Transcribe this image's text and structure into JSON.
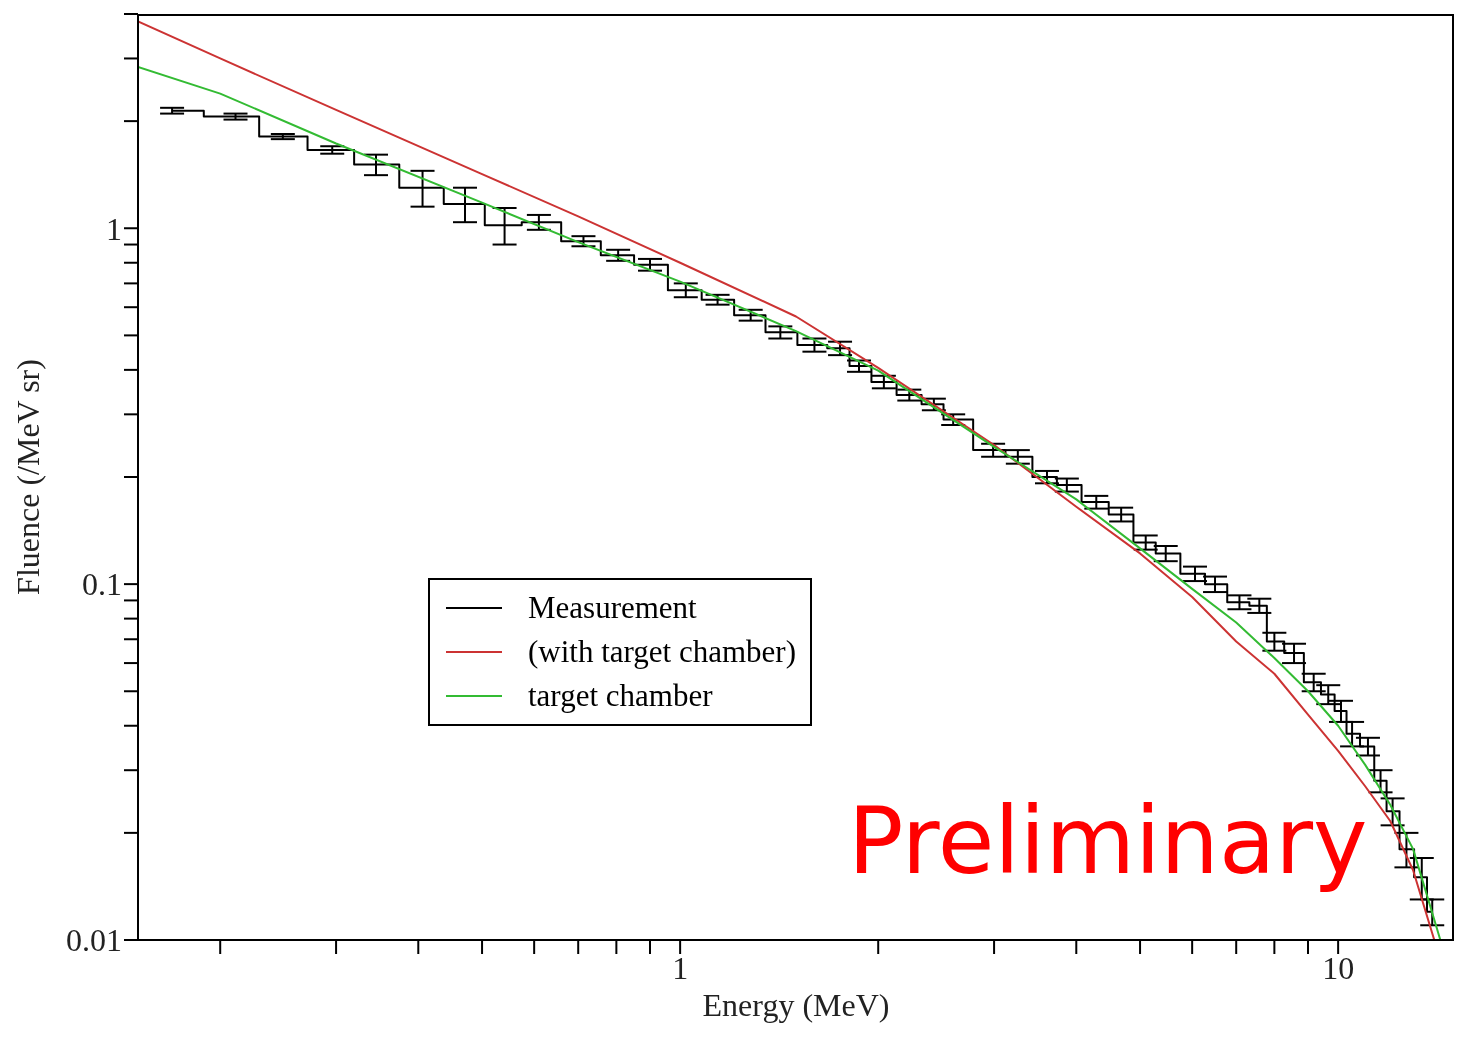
{
  "chart_data": {
    "type": "line",
    "xlabel": "Energy (MeV)",
    "ylabel": "Fluence (/MeV sr)",
    "log": "xy",
    "xlim": [
      0.15,
      15
    ],
    "ylim": [
      0.01,
      4
    ],
    "xticks": [
      {
        "value": 0.2,
        "label": null
      },
      {
        "value": 0.3,
        "label": null
      },
      {
        "value": 0.4,
        "label": null
      },
      {
        "value": 0.5,
        "label": null
      },
      {
        "value": 0.6,
        "label": null
      },
      {
        "value": 0.7,
        "label": null
      },
      {
        "value": 0.8,
        "label": null
      },
      {
        "value": 0.9,
        "label": null
      },
      1,
      {
        "value": 2,
        "label": null
      },
      {
        "value": 3,
        "label": null
      },
      {
        "value": 4,
        "label": null
      },
      {
        "value": 5,
        "label": null
      },
      {
        "value": 6,
        "label": null
      },
      {
        "value": 7,
        "label": null
      },
      {
        "value": 8,
        "label": null
      },
      {
        "value": 9,
        "label": null
      },
      10
    ],
    "yticks": [
      0.01,
      {
        "value": 0.02,
        "label": null
      },
      {
        "value": 0.03,
        "label": null
      },
      {
        "value": 0.04,
        "label": null
      },
      {
        "value": 0.05,
        "label": null
      },
      {
        "value": 0.06,
        "label": null
      },
      {
        "value": 0.07,
        "label": null
      },
      {
        "value": 0.08,
        "label": null
      },
      {
        "value": 0.09,
        "label": null
      },
      0.1,
      {
        "value": 0.2,
        "label": null
      },
      {
        "value": 0.3,
        "label": null
      },
      {
        "value": 0.4,
        "label": null
      },
      {
        "value": 0.5,
        "label": null
      },
      {
        "value": 0.6,
        "label": null
      },
      {
        "value": 0.7,
        "label": null
      },
      {
        "value": 0.8,
        "label": null
      },
      {
        "value": 0.9,
        "label": null
      },
      1,
      {
        "value": 2,
        "label": null
      },
      {
        "value": 3,
        "label": null
      },
      {
        "value": 4,
        "label": null
      }
    ],
    "legend": "center",
    "marker": "none",
    "line_style": "solid",
    "annotations": [
      "Preliminary"
    ],
    "series": [
      {
        "name": "Measurement",
        "type": "step",
        "color": "#000000",
        "x": [
          0.169,
          0.211,
          0.249,
          0.296,
          0.345,
          0.406,
          0.471,
          0.541,
          0.61,
          0.713,
          0.805,
          0.9,
          1.02,
          1.14,
          1.28,
          1.42,
          1.6,
          1.75,
          1.87,
          2.04,
          2.23,
          2.43,
          2.6,
          2.99,
          3.26,
          3.61,
          3.87,
          4.29,
          4.68,
          5.1,
          5.47,
          6.06,
          6.5,
          7.08,
          7.59,
          8.0,
          8.57,
          9.18,
          9.66,
          10.1,
          10.5,
          11.1,
          11.6,
          12.1,
          12.7,
          13.4,
          13.9
        ],
        "values": [
          2.14,
          2.06,
          1.81,
          1.66,
          1.51,
          1.3,
          1.17,
          1.02,
          1.04,
          0.92,
          0.84,
          0.79,
          0.67,
          0.63,
          0.57,
          0.51,
          0.47,
          0.46,
          0.41,
          0.37,
          0.34,
          0.32,
          0.29,
          0.238,
          0.228,
          0.2,
          0.19,
          0.17,
          0.157,
          0.131,
          0.122,
          0.107,
          0.1,
          0.089,
          0.087,
          0.069,
          0.064,
          0.053,
          0.049,
          0.044,
          0.038,
          0.035,
          0.028,
          0.023,
          0.018,
          0.015,
          0.012
        ],
        "errors": [
          0.04,
          0.04,
          0.03,
          0.04,
          0.1,
          0.15,
          0.13,
          0.12,
          0.05,
          0.03,
          0.03,
          0.03,
          0.03,
          0.02,
          0.02,
          0.02,
          0.02,
          0.02,
          0.015,
          0.015,
          0.012,
          0.012,
          0.01,
          0.01,
          0.01,
          0.008,
          0.008,
          0.007,
          0.007,
          0.006,
          0.006,
          0.005,
          0.005,
          0.004,
          0.004,
          0.004,
          0.004,
          0.003,
          0.003,
          0.003,
          0.003,
          0.002,
          0.002,
          0.002,
          0.002,
          0.002,
          0.001
        ]
      },
      {
        "name": "(with target chamber)",
        "color": "#cc3333",
        "x": [
          0.15,
          0.2,
          0.3,
          0.5,
          0.7,
          1,
          1.5,
          2,
          3,
          4,
          5,
          6,
          7,
          8,
          9,
          10,
          11,
          12,
          13,
          14
        ],
        "values": [
          3.81,
          3.0,
          2.15,
          1.42,
          1.08,
          0.8,
          0.565,
          0.405,
          0.246,
          0.165,
          0.122,
          0.092,
          0.069,
          0.056,
          0.043,
          0.034,
          0.027,
          0.0216,
          0.0157,
          0.01
        ]
      },
      {
        "name": "target chamber",
        "color": "#33bb33",
        "x": [
          0.15,
          0.2,
          0.3,
          0.5,
          0.7,
          1,
          1.5,
          2,
          3,
          4,
          5,
          6,
          7,
          8,
          9,
          10,
          11,
          12,
          13,
          14,
          14.3
        ],
        "values": [
          2.84,
          2.39,
          1.73,
          1.18,
          0.914,
          0.708,
          0.514,
          0.398,
          0.243,
          0.173,
          0.126,
          0.097,
          0.078,
          0.062,
          0.05,
          0.04,
          0.031,
          0.024,
          0.018,
          0.0114,
          0.01
        ]
      }
    ]
  }
}
